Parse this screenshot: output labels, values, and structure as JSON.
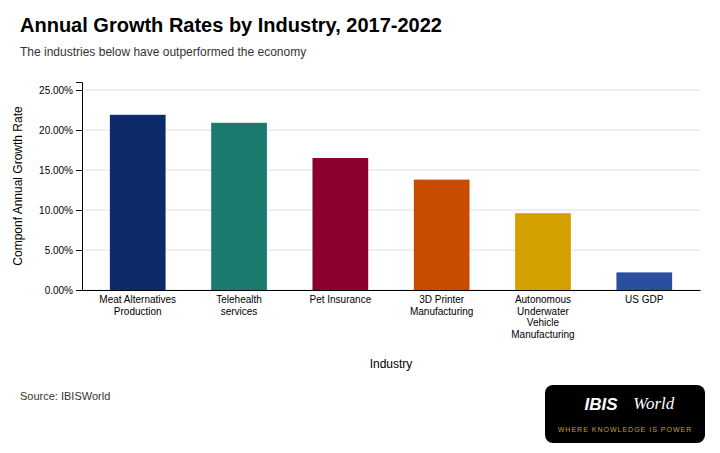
{
  "chart_data": {
    "type": "bar",
    "title": "Annual Growth Rates by Industry, 2017-2022",
    "subtitle": "The industries below have outperformed the economy",
    "xlabel": "Industry",
    "ylabel": "Componf Annual Growth Rate",
    "source": "Source: IBISWorld",
    "annotations": [
      "IBIS",
      "World",
      "WHERE KNOWLEDGE IS POWER"
    ],
    "categories": [
      "Meat Alternatives\nProduction",
      "Telehealth\nservices",
      "Pet Insurance",
      "3D Printer\nManufacturing",
      "Autonomous\nUnderwater\nVehicle\nManufacturing",
      "US GDP"
    ],
    "values": [
      0.219,
      0.209,
      0.165,
      0.138,
      0.096,
      0.022
    ],
    "colors": [
      "#0d2b6b",
      "#1a7a6e",
      "#8b0030",
      "#c94b00",
      "#d4a000",
      "#2a4fa0"
    ],
    "ylim": [
      0,
      0.26
    ],
    "yticks": [
      {
        "value": 0.0,
        "label": "0.00%"
      },
      {
        "value": 0.05,
        "label": "5.00%"
      },
      {
        "value": 0.1,
        "label": "10.00%"
      },
      {
        "value": 0.15,
        "label": "15.00%"
      },
      {
        "value": 0.2,
        "label": "20.00%"
      },
      {
        "value": 0.25,
        "label": "25.00%"
      }
    ],
    "grid": true
  }
}
